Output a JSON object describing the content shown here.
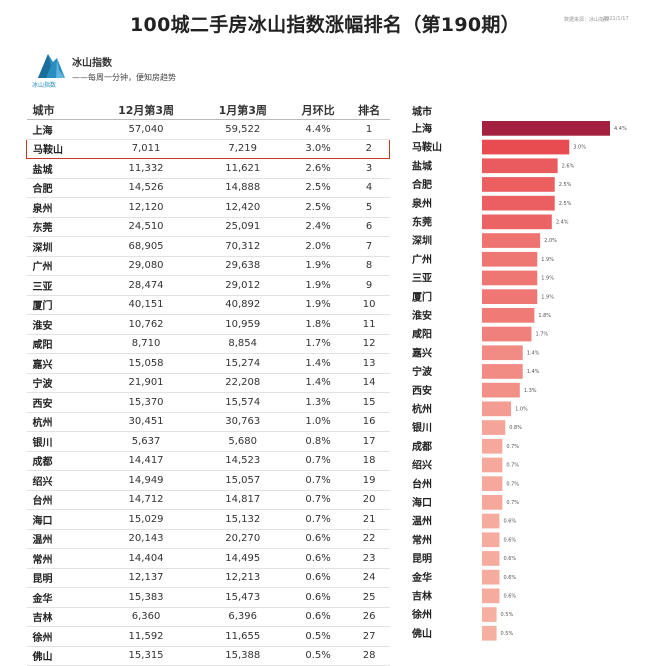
{
  "header": {
    "title": "100城二手房冰山指数涨幅排名（第190期）",
    "source_note": "数据来源：冰山指数",
    "date_note": "2021/1/17"
  },
  "brand": {
    "name": "冰山指数",
    "sub_name": "冰山指数",
    "slogan": "——每周一分钟，便知房趋势",
    "logo_color": "#2a8fc0"
  },
  "table": {
    "columns": [
      "城市",
      "12月第3周",
      "1月第3周",
      "月环比",
      "排名"
    ],
    "highlight_city": "马鞍山",
    "highlight_color": "#c0392b",
    "rows": [
      [
        "上海",
        "57,040",
        "59,522",
        "4.4%",
        "1"
      ],
      [
        "马鞍山",
        "7,011",
        "7,219",
        "3.0%",
        "2"
      ],
      [
        "盐城",
        "11,332",
        "11,621",
        "2.6%",
        "3"
      ],
      [
        "合肥",
        "14,526",
        "14,888",
        "2.5%",
        "4"
      ],
      [
        "泉州",
        "12,120",
        "12,420",
        "2.5%",
        "5"
      ],
      [
        "东莞",
        "24,510",
        "25,091",
        "2.4%",
        "6"
      ],
      [
        "深圳",
        "68,905",
        "70,312",
        "2.0%",
        "7"
      ],
      [
        "广州",
        "29,080",
        "29,638",
        "1.9%",
        "8"
      ],
      [
        "三亚",
        "28,474",
        "29,012",
        "1.9%",
        "9"
      ],
      [
        "厦门",
        "40,151",
        "40,892",
        "1.9%",
        "10"
      ],
      [
        "淮安",
        "10,762",
        "10,959",
        "1.8%",
        "11"
      ],
      [
        "咸阳",
        "8,710",
        "8,854",
        "1.7%",
        "12"
      ],
      [
        "嘉兴",
        "15,058",
        "15,274",
        "1.4%",
        "13"
      ],
      [
        "宁波",
        "21,901",
        "22,208",
        "1.4%",
        "14"
      ],
      [
        "西安",
        "15,370",
        "15,574",
        "1.3%",
        "15"
      ],
      [
        "杭州",
        "30,451",
        "30,763",
        "1.0%",
        "16"
      ],
      [
        "银川",
        "5,637",
        "5,680",
        "0.8%",
        "17"
      ],
      [
        "成都",
        "14,417",
        "14,523",
        "0.7%",
        "18"
      ],
      [
        "绍兴",
        "14,949",
        "15,057",
        "0.7%",
        "19"
      ],
      [
        "台州",
        "14,712",
        "14,817",
        "0.7%",
        "20"
      ],
      [
        "海口",
        "15,029",
        "15,132",
        "0.7%",
        "21"
      ],
      [
        "温州",
        "20,143",
        "20,270",
        "0.6%",
        "22"
      ],
      [
        "常州",
        "14,404",
        "14,495",
        "0.6%",
        "23"
      ],
      [
        "昆明",
        "12,137",
        "12,213",
        "0.6%",
        "24"
      ],
      [
        "金华",
        "15,383",
        "15,473",
        "0.6%",
        "25"
      ],
      [
        "吉林",
        "6,360",
        "6,396",
        "0.6%",
        "26"
      ],
      [
        "徐州",
        "11,592",
        "11,655",
        "0.5%",
        "27"
      ],
      [
        "佛山",
        "15,315",
        "15,388",
        "0.5%",
        "28"
      ]
    ]
  },
  "chart_data": {
    "type": "bar",
    "orientation": "horizontal",
    "category_header": "城市",
    "categories": [
      "上海",
      "马鞍山",
      "盐城",
      "合肥",
      "泉州",
      "东莞",
      "深圳",
      "广州",
      "三亚",
      "厦门",
      "淮安",
      "咸阳",
      "嘉兴",
      "宁波",
      "西安",
      "杭州",
      "银川",
      "成都",
      "绍兴",
      "台州",
      "海口",
      "温州",
      "常州",
      "昆明",
      "金华",
      "吉林",
      "徐州",
      "佛山"
    ],
    "values": [
      4.4,
      3.0,
      2.6,
      2.5,
      2.5,
      2.4,
      2.0,
      1.9,
      1.9,
      1.9,
      1.8,
      1.7,
      1.4,
      1.4,
      1.3,
      1.0,
      0.8,
      0.7,
      0.7,
      0.7,
      0.7,
      0.6,
      0.6,
      0.6,
      0.6,
      0.6,
      0.5,
      0.5
    ],
    "value_labels": [
      "4.4%",
      "3.0%",
      "2.6%",
      "2.5%",
      "2.5%",
      "2.4%",
      "2.0%",
      "1.9%",
      "1.9%",
      "1.9%",
      "1.8%",
      "1.7%",
      "1.4%",
      "1.4%",
      "1.3%",
      "1.0%",
      "0.8%",
      "0.7%",
      "0.7%",
      "0.7%",
      "0.7%",
      "0.6%",
      "0.6%",
      "0.6%",
      "0.6%",
      "0.6%",
      "0.5%",
      "0.5%"
    ],
    "unit": "%",
    "grid": false,
    "legend": false,
    "color_top": "#a3203e",
    "color_mid": "#e84b50",
    "color_low": "#f6b0a2"
  }
}
